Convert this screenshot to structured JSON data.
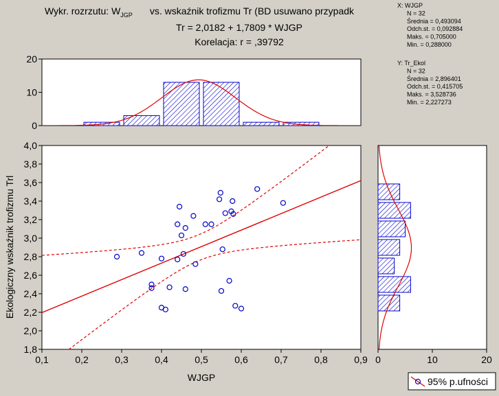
{
  "title": {
    "line1_prefix": "Wykr. rozrzutu: W",
    "line1_sub": "JGP",
    "line1_suffix": "vs. wskaźnik trofizmu Tr (BD usuwano przypadk",
    "line2": "Tr = 2,0182 + 1,7809 * WJGP",
    "line3": "Korelacja: r =    ,39792"
  },
  "stats_x": [
    "X:  WJGP",
    "N = 32",
    "Średnia = 0,493094",
    "Odch.st. = 0,092884",
    "Maks. = 0,705000",
    "Min. = 0,288000"
  ],
  "stats_y": [
    "Y:  Tr_Ekol",
    "N = 32",
    "Średnia = 2,896401",
    "Odch.st. = 0,415705",
    "Maks. = 3,528736",
    "Min. = 2,227273"
  ],
  "legend": {
    "label": "95% p.ufności"
  },
  "colors": {
    "background": "#d4d0c8",
    "points": "#0000cc",
    "line": "#e00000",
    "bars": "#0000cc"
  },
  "chart_data": [
    {
      "type": "scatter",
      "xlabel": "WJGP",
      "ylabel": "Ekologiczny wskaźnik trofizmu Trl",
      "xlim": [
        0.1,
        0.9
      ],
      "ylim": [
        1.8,
        4.0
      ],
      "xticks": [
        "0,1",
        "0,2",
        "0,3",
        "0,4",
        "0,5",
        "0,6",
        "0,7",
        "0,8",
        "0,9"
      ],
      "yticks": [
        "1,8",
        "2,0",
        "2,2",
        "2,4",
        "2,6",
        "2,8",
        "3,0",
        "3,2",
        "3,4",
        "3,6",
        "3,8",
        "4,0"
      ],
      "regression": {
        "intercept": 2.0182,
        "slope": 1.7809
      },
      "confidence": {
        "level": 0.95,
        "n": 32,
        "x_mean": 0.493094,
        "x_sd": 0.092884
      },
      "points": [
        [
          0.288,
          2.8
        ],
        [
          0.35,
          2.84
        ],
        [
          0.375,
          2.5
        ],
        [
          0.375,
          2.46
        ],
        [
          0.4,
          2.78
        ],
        [
          0.4,
          2.25
        ],
        [
          0.41,
          2.23
        ],
        [
          0.42,
          2.47
        ],
        [
          0.44,
          2.77
        ],
        [
          0.44,
          3.15
        ],
        [
          0.445,
          3.34
        ],
        [
          0.45,
          3.03
        ],
        [
          0.455,
          2.83
        ],
        [
          0.46,
          3.11
        ],
        [
          0.46,
          2.45
        ],
        [
          0.48,
          3.24
        ],
        [
          0.485,
          2.72
        ],
        [
          0.51,
          3.15
        ],
        [
          0.525,
          3.15
        ],
        [
          0.545,
          3.42
        ],
        [
          0.548,
          3.49
        ],
        [
          0.55,
          2.43
        ],
        [
          0.553,
          2.88
        ],
        [
          0.56,
          3.27
        ],
        [
          0.57,
          2.54
        ],
        [
          0.575,
          3.29
        ],
        [
          0.578,
          3.4
        ],
        [
          0.58,
          3.26
        ],
        [
          0.585,
          2.27
        ],
        [
          0.6,
          2.24
        ],
        [
          0.64,
          3.53
        ],
        [
          0.705,
          3.38
        ]
      ]
    },
    {
      "type": "bar",
      "orientation": "vertical",
      "bins": [
        [
          0.2,
          0.3
        ],
        [
          0.3,
          0.4
        ],
        [
          0.4,
          0.5
        ],
        [
          0.5,
          0.6
        ],
        [
          0.6,
          0.7
        ],
        [
          0.7,
          0.8
        ]
      ],
      "values": [
        1,
        3,
        13,
        13,
        1,
        1
      ],
      "ylim": [
        0,
        20
      ],
      "yticks": [
        "0",
        "10",
        "20"
      ],
      "normal_fit": {
        "mean": 0.493094,
        "sd": 0.092884,
        "n": 32,
        "bin_width": 0.1
      }
    },
    {
      "type": "bar",
      "orientation": "horizontal",
      "bins": [
        [
          2.2,
          2.4
        ],
        [
          2.4,
          2.6
        ],
        [
          2.6,
          2.8
        ],
        [
          2.8,
          3.0
        ],
        [
          3.0,
          3.2
        ],
        [
          3.2,
          3.4
        ],
        [
          3.4,
          3.6
        ]
      ],
      "values": [
        4,
        6,
        3,
        4,
        5,
        6,
        4
      ],
      "xlim": [
        0,
        20
      ],
      "xticks": [
        "0",
        "10",
        "20"
      ],
      "normal_fit": {
        "mean": 2.896401,
        "sd": 0.415705,
        "n": 32,
        "bin_width": 0.2
      }
    }
  ]
}
